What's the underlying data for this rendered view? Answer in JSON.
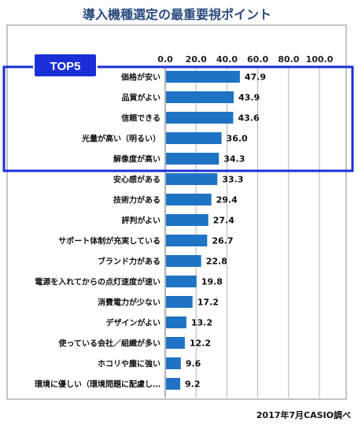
{
  "chart_data": {
    "type": "bar",
    "orientation": "horizontal",
    "title": "導入機種選定の最重要視ポイント",
    "categories": [
      "価格が安い",
      "品質がよい",
      "信頼できる",
      "光量が高い（明るい）",
      "解像度が高い",
      "安心感がある",
      "技術力がある",
      "評判がよい",
      "サポート体制が充実している",
      "ブランド力がある",
      "電源を入れてからの点灯速度が速い",
      "消費電力が少ない",
      "デザインがよい",
      "使っている会社／組織が多い",
      "ホコリや塵に強い",
      "環境に優しい（環境問題に配慮し…"
    ],
    "values": [
      47.9,
      43.9,
      43.6,
      36.0,
      34.3,
      33.3,
      29.4,
      27.4,
      26.7,
      22.8,
      19.8,
      17.2,
      13.2,
      12.2,
      9.6,
      9.2
    ],
    "value_labels": [
      "47.9",
      "43.9",
      "43.6",
      "36.0",
      "34.3",
      "33.3",
      "29.4",
      "27.4",
      "26.7",
      "22.8",
      "19.8",
      "17.2",
      "13.2",
      "12.2",
      "9.6",
      "9.2"
    ],
    "xlim": [
      0,
      100
    ],
    "xticks": [
      "0.0",
      "20.0",
      "40.0",
      "60.0",
      "80.0",
      "100.0"
    ],
    "grid": true,
    "highlight": {
      "label": "TOP5",
      "count": 5
    },
    "source": "2017年7月CASIO調べ"
  },
  "colors": {
    "bar": "#1f73c4",
    "highlight_border": "#1b2fd6",
    "badge_fill": "#1b2fd6",
    "title": "#2b4a7e",
    "grid": "#b5b5b5"
  }
}
